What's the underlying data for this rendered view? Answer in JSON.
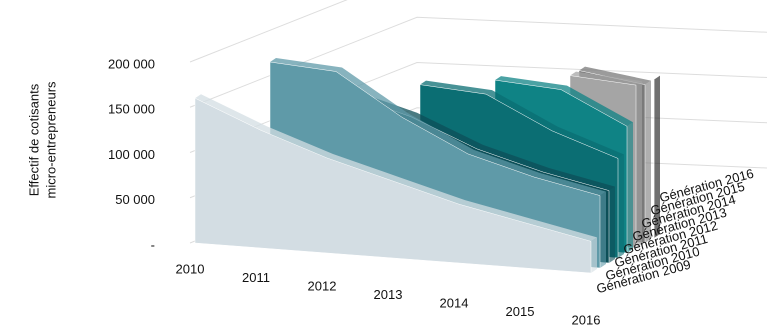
{
  "chart_data": {
    "type": "area3d",
    "ylabel": [
      "Effectif de cotisants",
      "micro-entrepreneurs"
    ],
    "categories": [
      "2010",
      "2011",
      "2012",
      "2013",
      "2014",
      "2015",
      "2016"
    ],
    "ylim": [
      0,
      200000
    ],
    "yticks": [
      {
        "value": 0,
        "label": "-"
      },
      {
        "value": 50000,
        "label": "50 000"
      },
      {
        "value": 100000,
        "label": "100 000"
      },
      {
        "value": 150000,
        "label": "150 000"
      },
      {
        "value": 200000,
        "label": "200 000"
      }
    ],
    "grid": true,
    "series": [
      {
        "name": "Génération 2009",
        "color": "#d3dde3",
        "values": [
          160000,
          130000,
          105000,
          85000,
          65000,
          50000,
          35000
        ]
      },
      {
        "name": "Génération 2010",
        "color": "#5f9aa8",
        "values": [
          null,
          200000,
          195000,
          150000,
          115000,
          95000,
          80000
        ]
      },
      {
        "name": "Génération 2011",
        "color": "#0d4f58",
        "values": [
          null,
          null,
          165000,
          145000,
          115000,
          95000,
          80000
        ]
      },
      {
        "name": "Génération 2012",
        "color": "#0b6e73",
        "values": [
          null,
          null,
          null,
          175000,
          170000,
          135000,
          110000
        ]
      },
      {
        "name": "Génération 2013",
        "color": "#0f8385",
        "values": [
          null,
          null,
          null,
          null,
          180000,
          175000,
          140000
        ]
      },
      {
        "name": "Génération 2014",
        "color": "#a5a5a5",
        "values": [
          null,
          null,
          null,
          null,
          null,
          185000,
          180000
        ]
      },
      {
        "name": "Génération 2015",
        "color": "#7a7a7a",
        "values": [
          null,
          null,
          null,
          null,
          null,
          185000,
          175000
        ]
      },
      {
        "name": "Génération 2016",
        "color": "#111111",
        "values": [
          null,
          null,
          null,
          null,
          null,
          null,
          175000
        ]
      }
    ]
  }
}
